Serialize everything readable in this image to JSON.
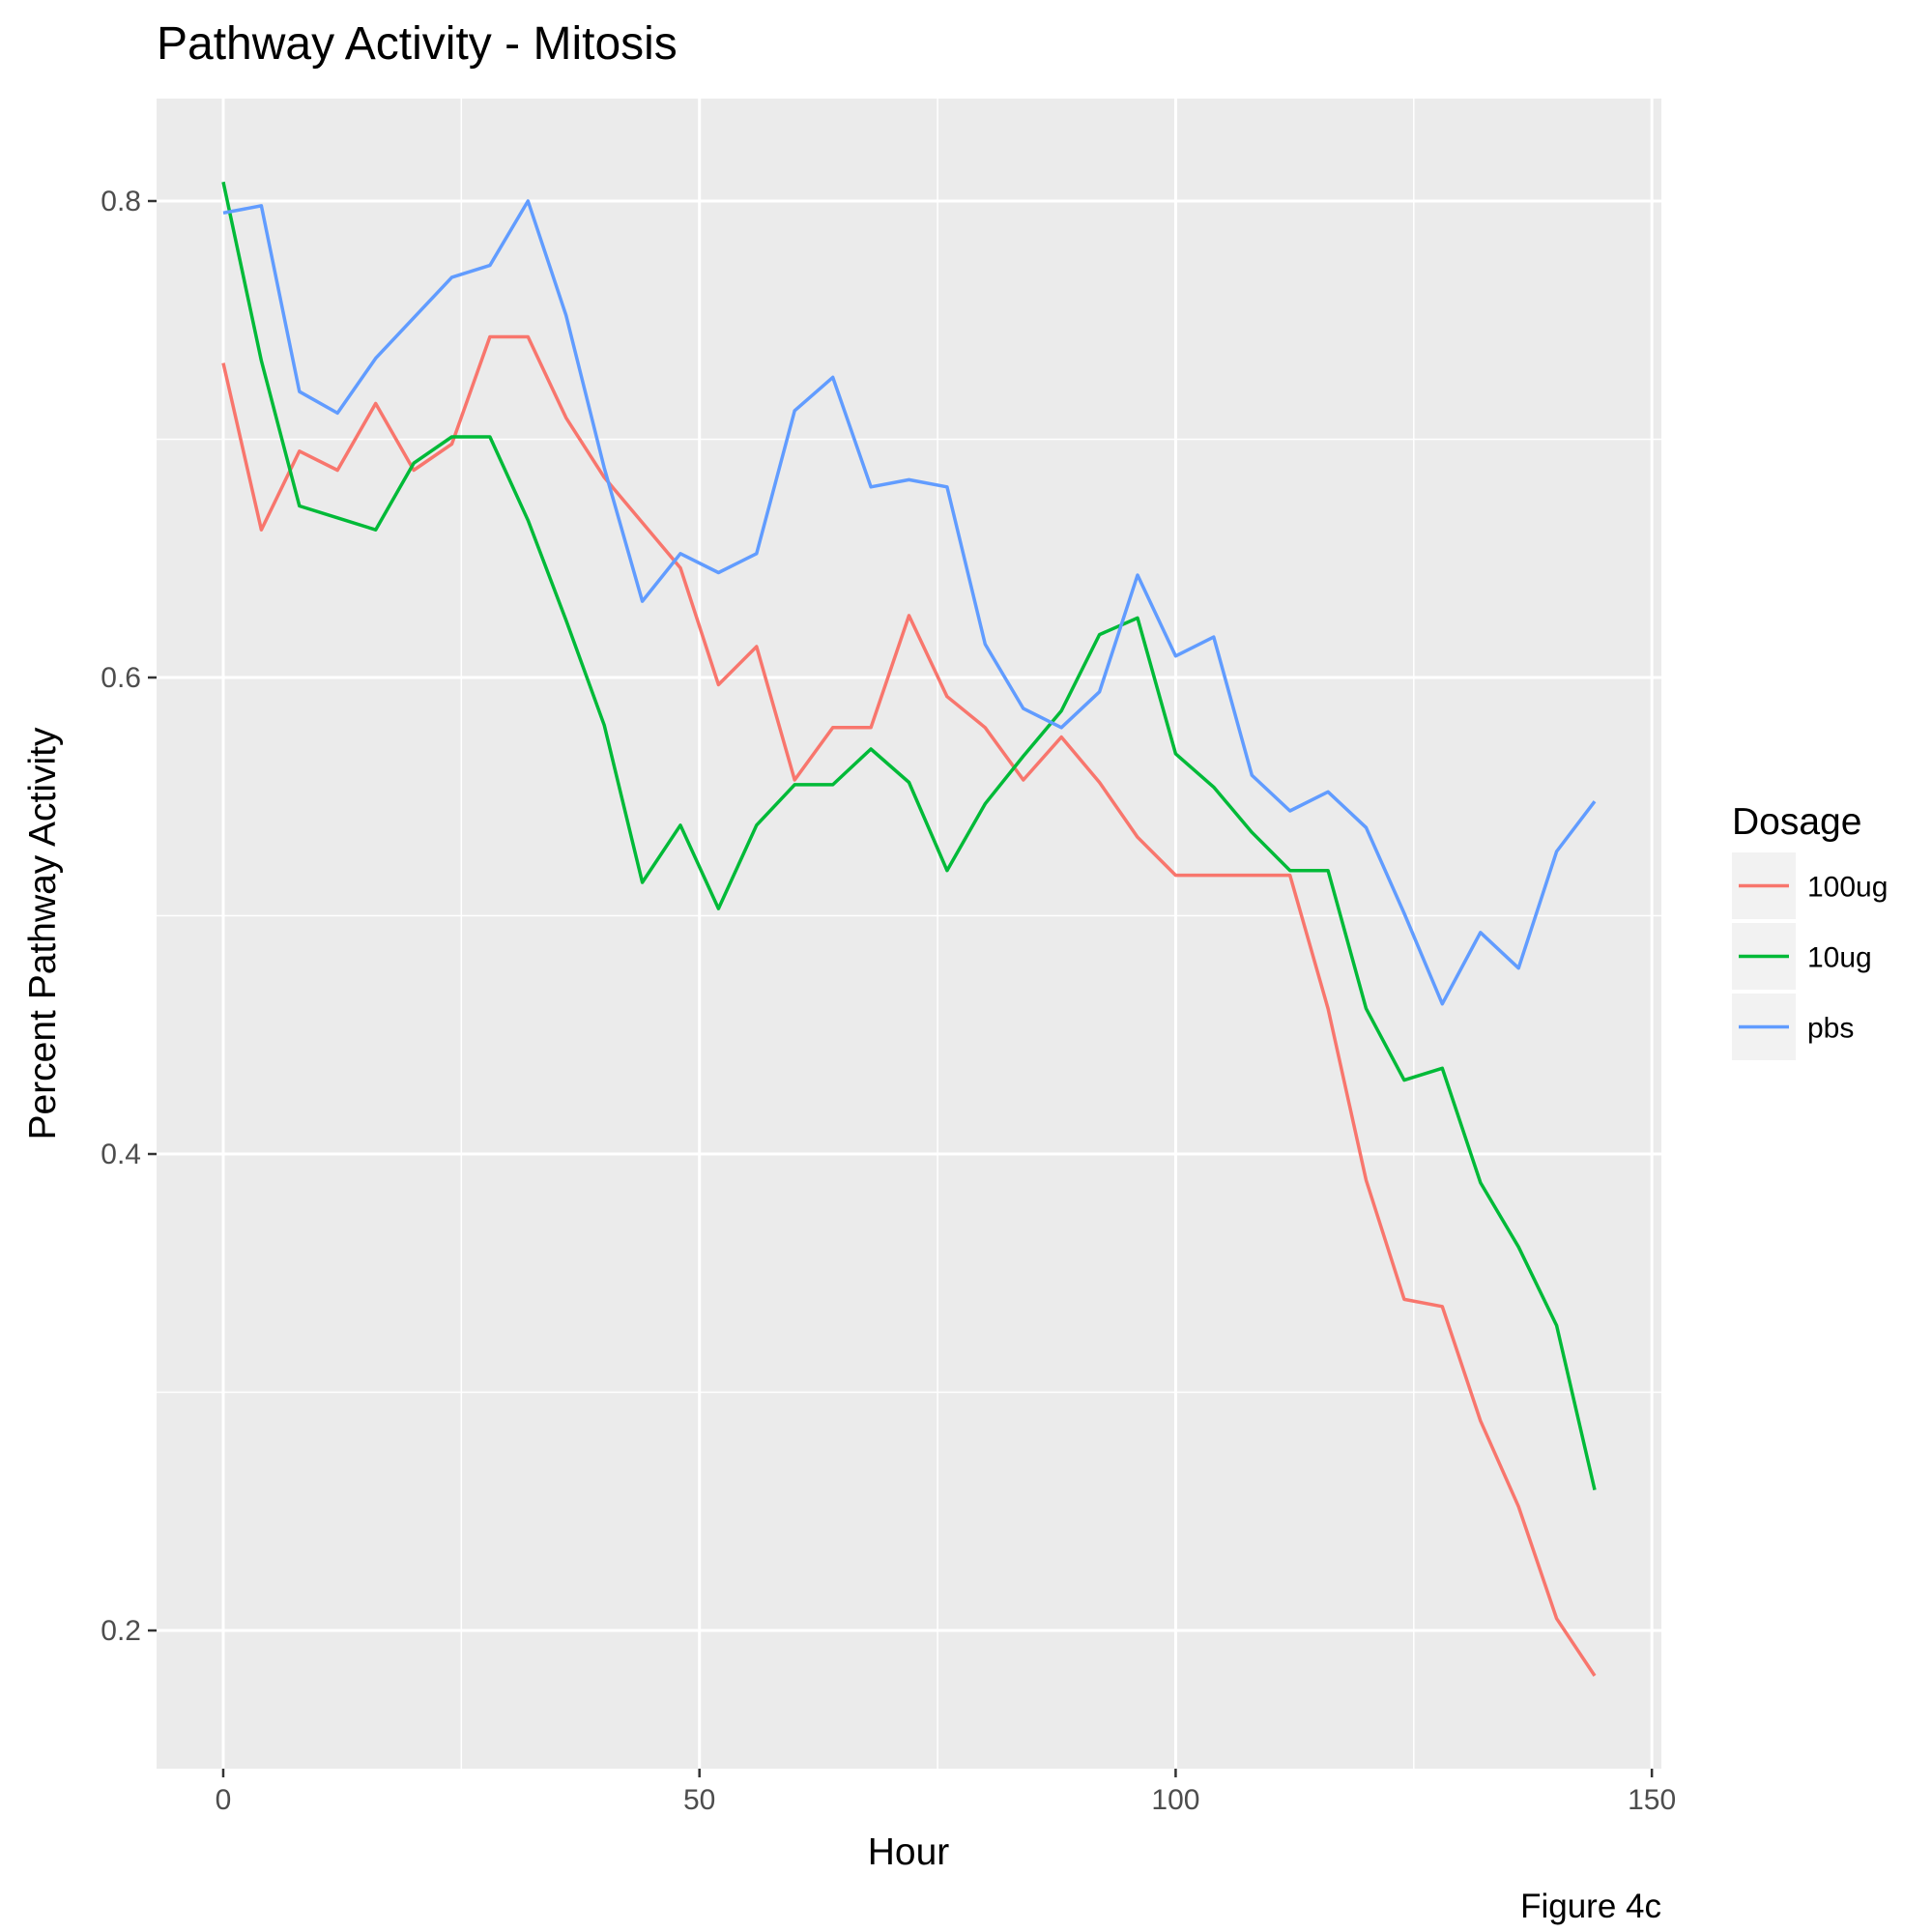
{
  "chart_data": {
    "type": "line",
    "title": "Pathway Activity - Mitosis",
    "xlabel": "Hour",
    "ylabel": "Percent Pathway Activity",
    "caption": "Figure 4c",
    "xlim": [
      -7,
      151
    ],
    "ylim": [
      0.142,
      0.843
    ],
    "x_ticks": [
      0,
      50,
      100,
      150
    ],
    "x_tick_labels": [
      "0",
      "50",
      "100",
      "150"
    ],
    "y_ticks": [
      0.2,
      0.4,
      0.6,
      0.8
    ],
    "y_tick_labels": [
      "0.2",
      "0.4",
      "0.6",
      "0.8"
    ],
    "grid": true,
    "background": "#ebebeb",
    "legend": {
      "title": "Dosage",
      "position": "right"
    },
    "x": [
      0,
      4,
      8,
      12,
      16,
      20,
      24,
      28,
      32,
      36,
      40,
      44,
      48,
      52,
      56,
      60,
      64,
      68,
      72,
      76,
      80,
      84,
      88,
      92,
      96,
      100,
      104,
      108,
      112,
      116,
      120,
      124,
      128,
      132,
      136,
      140,
      144
    ],
    "series": [
      {
        "name": "100ug",
        "color": "#f8766d",
        "values": [
          0.732,
          0.662,
          0.695,
          0.687,
          0.715,
          0.687,
          0.698,
          0.743,
          0.743,
          0.709,
          0.684,
          0.665,
          0.646,
          0.597,
          0.613,
          0.557,
          0.579,
          0.579,
          0.626,
          0.592,
          0.579,
          0.557,
          0.575,
          0.556,
          0.533,
          0.517,
          0.517,
          0.517,
          0.517,
          0.461,
          0.389,
          0.339,
          0.336,
          0.288,
          0.252,
          0.205,
          0.181
        ]
      },
      {
        "name": "10ug",
        "color": "#00ba38",
        "values": [
          0.808,
          0.733,
          0.672,
          0.667,
          0.662,
          0.69,
          0.701,
          0.701,
          0.666,
          0.624,
          0.58,
          0.514,
          0.538,
          0.503,
          0.538,
          0.555,
          0.555,
          0.57,
          0.556,
          0.519,
          0.547,
          0.567,
          0.586,
          0.618,
          0.625,
          0.568,
          0.554,
          0.535,
          0.519,
          0.519,
          0.461,
          0.431,
          0.436,
          0.388,
          0.361,
          0.328,
          0.259
        ]
      },
      {
        "name": "pbs",
        "color": "#619cff",
        "values": [
          0.795,
          0.798,
          0.72,
          0.711,
          0.734,
          0.751,
          0.768,
          0.773,
          0.8,
          0.752,
          0.688,
          0.632,
          0.652,
          0.644,
          0.652,
          0.712,
          0.726,
          0.68,
          0.683,
          0.68,
          0.614,
          0.587,
          0.579,
          0.594,
          0.643,
          0.609,
          0.617,
          0.559,
          0.544,
          0.552,
          0.537,
          0.501,
          0.463,
          0.493,
          0.478,
          0.527,
          0.548
        ]
      }
    ]
  }
}
